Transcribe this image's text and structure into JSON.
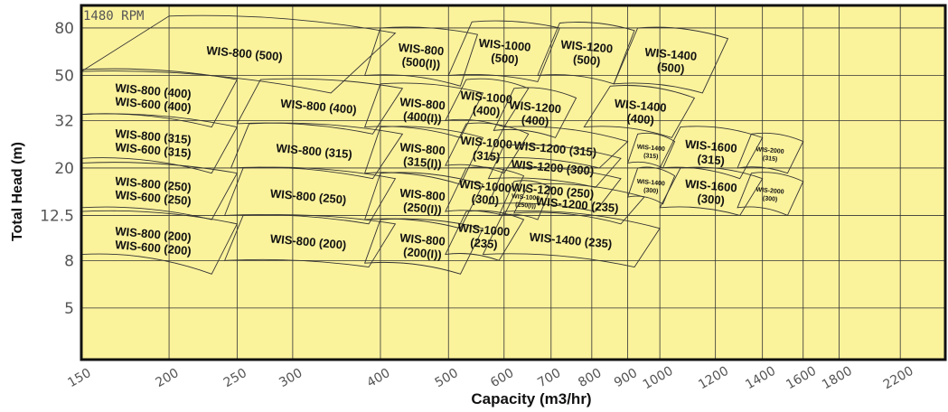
{
  "chart_data": {
    "type": "scatter",
    "title": "",
    "annotation": "1480 RPM",
    "xlabel": "Capacity (m3/hr)",
    "ylabel": "Total Head (m)",
    "x_scale": "log",
    "y_scale": "log",
    "x_ticks": [
      150,
      200,
      250,
      300,
      400,
      500,
      600,
      700,
      800,
      900,
      1000,
      1200,
      1400,
      1600,
      1800,
      2200
    ],
    "x_tick_labels": [
      "150",
      "200",
      "250",
      "300",
      "400",
      "500",
      "600",
      "700",
      "800",
      "900",
      "1000",
      "1200",
      "1400",
      "1600",
      "1800",
      "2200"
    ],
    "y_ticks": [
      5,
      8,
      12.5,
      20,
      32,
      50,
      80
    ],
    "y_tick_labels": [
      "5",
      "8",
      "12.5",
      "20",
      "32",
      "50",
      "80"
    ],
    "xlim": [
      150,
      2550
    ],
    "ylim": [
      3,
      100
    ],
    "grid": true,
    "colors": {
      "background": "#fbf29c",
      "border": "#111111",
      "grid": "#333333",
      "region_stroke": "#333333"
    },
    "regions": [
      {
        "lines": [
          "WIS-800 (500)"
        ],
        "corners": [
          [
            200,
            90
          ],
          [
            420,
            76
          ],
          [
            340,
            42
          ],
          [
            150,
            52
          ]
        ]
      },
      {
        "lines": [
          "WIS-800 (400)",
          "WIS-600 (400)"
        ],
        "corners": [
          [
            150,
            53
          ],
          [
            250,
            48
          ],
          [
            230,
            30
          ],
          [
            150,
            34
          ]
        ]
      },
      {
        "lines": [
          "WIS-800 (315)",
          "WIS-600 (315)"
        ],
        "corners": [
          [
            150,
            34
          ],
          [
            250,
            30
          ],
          [
            230,
            19
          ],
          [
            150,
            22
          ]
        ]
      },
      {
        "lines": [
          "WIS-800 (250)",
          "WIS-600 (250)"
        ],
        "corners": [
          [
            150,
            21
          ],
          [
            250,
            19
          ],
          [
            230,
            12
          ],
          [
            150,
            13.5
          ]
        ]
      },
      {
        "lines": [
          "WIS-800 (200)",
          "WIS-600 (200)"
        ],
        "corners": [
          [
            150,
            13
          ],
          [
            250,
            11.5
          ],
          [
            230,
            7
          ],
          [
            150,
            8.5
          ]
        ]
      },
      {
        "lines": [
          "WIS-800 (400)"
        ],
        "corners": [
          [
            270,
            48
          ],
          [
            430,
            44
          ],
          [
            390,
            28
          ],
          [
            250,
            31
          ]
        ]
      },
      {
        "lines": [
          "WIS-800 (315)"
        ],
        "corners": [
          [
            260,
            31
          ],
          [
            430,
            28
          ],
          [
            390,
            18
          ],
          [
            245,
            20
          ]
        ]
      },
      {
        "lines": [
          "WIS-800 (250)"
        ],
        "corners": [
          [
            255,
            20
          ],
          [
            420,
            18
          ],
          [
            385,
            11.5
          ],
          [
            240,
            12.5
          ]
        ]
      },
      {
        "lines": [
          "WIS-800 (200)"
        ],
        "corners": [
          [
            255,
            12.5
          ],
          [
            420,
            11.5
          ],
          [
            385,
            7.5
          ],
          [
            240,
            8
          ]
        ]
      },
      {
        "lines": [
          "WIS-800",
          "(500(I))"
        ],
        "corners": [
          [
            400,
            80
          ],
          [
            550,
            75
          ],
          [
            520,
            45
          ],
          [
            380,
            50
          ]
        ]
      },
      {
        "lines": [
          "WIS-800",
          "(400(I))"
        ],
        "corners": [
          [
            400,
            46
          ],
          [
            560,
            42
          ],
          [
            520,
            27
          ],
          [
            380,
            30
          ]
        ]
      },
      {
        "lines": [
          "WIS-800",
          "(315(I))"
        ],
        "corners": [
          [
            400,
            30
          ],
          [
            560,
            27
          ],
          [
            520,
            17
          ],
          [
            380,
            19
          ]
        ]
      },
      {
        "lines": [
          "WIS-800",
          "(250(I))"
        ],
        "corners": [
          [
            400,
            19
          ],
          [
            560,
            17
          ],
          [
            520,
            11
          ],
          [
            380,
            12
          ]
        ]
      },
      {
        "lines": [
          "WIS-800",
          "(200(I))"
        ],
        "corners": [
          [
            400,
            12
          ],
          [
            560,
            11
          ],
          [
            520,
            7
          ],
          [
            380,
            7.8
          ]
        ]
      },
      {
        "lines": [
          "WIS-1000",
          "(500)"
        ],
        "corners": [
          [
            540,
            85
          ],
          [
            720,
            80
          ],
          [
            670,
            47
          ],
          [
            500,
            50
          ]
        ]
      },
      {
        "lines": [
          "WIS-1000",
          "(400)"
        ],
        "corners": [
          [
            530,
            48
          ],
          [
            650,
            44
          ],
          [
            600,
            30
          ],
          [
            495,
            32
          ]
        ]
      },
      {
        "lines": [
          "WIS-1000",
          "(315)"
        ],
        "corners": [
          [
            530,
            31
          ],
          [
            650,
            28
          ],
          [
            600,
            19
          ],
          [
            495,
            20.5
          ]
        ]
      },
      {
        "lines": [
          "WIS-1000",
          "(300)"
        ],
        "corners": [
          [
            530,
            20
          ],
          [
            640,
            18.5
          ],
          [
            600,
            12.5
          ],
          [
            495,
            13
          ]
        ]
      },
      {
        "lines": [
          "WIS-1000",
          "(235)"
        ],
        "corners": [
          [
            530,
            13
          ],
          [
            640,
            12
          ],
          [
            590,
            8
          ],
          [
            495,
            8.5
          ]
        ]
      },
      {
        "lines": [
          "WIS-1200",
          "(500)"
        ],
        "corners": [
          [
            720,
            84
          ],
          [
            920,
            78
          ],
          [
            860,
            46
          ],
          [
            670,
            50
          ]
        ]
      },
      {
        "lines": [
          "WIS-1200",
          "(400)"
        ],
        "corners": [
          [
            620,
            44
          ],
          [
            760,
            40
          ],
          [
            710,
            27
          ],
          [
            580,
            29
          ]
        ]
      },
      {
        "lines": [
          "WIS-1200 (315)"
        ],
        "corners": [
          [
            600,
            30
          ],
          [
            900,
            26
          ],
          [
            820,
            20
          ],
          [
            570,
            22
          ]
        ]
      },
      {
        "lines": [
          "WIS-1200 (300)"
        ],
        "corners": [
          [
            600,
            25
          ],
          [
            880,
            22
          ],
          [
            810,
            16.5
          ],
          [
            570,
            18
          ]
        ]
      },
      {
        "lines": [
          "WIS-1200 (250)"
        ],
        "corners": [
          [
            600,
            20
          ],
          [
            880,
            18
          ],
          [
            810,
            13
          ],
          [
            570,
            14
          ]
        ]
      },
      {
        "lines": [
          "WIS-1000",
          "(250(I))"
        ],
        "corners": [
          [
            620,
            17.5
          ],
          [
            700,
            16.5
          ],
          [
            670,
            12
          ],
          [
            590,
            12.5
          ]
        ]
      },
      {
        "lines": [
          "WIS-1200 (235)"
        ],
        "corners": [
          [
            650,
            17
          ],
          [
            950,
            15
          ],
          [
            880,
            11.5
          ],
          [
            620,
            12.8
          ]
        ]
      },
      {
        "lines": [
          "WIS-1400 (235)"
        ],
        "corners": [
          [
            600,
            13
          ],
          [
            1000,
            11
          ],
          [
            920,
            7.5
          ],
          [
            560,
            8.5
          ]
        ]
      },
      {
        "lines": [
          "WIS-1400",
          "(500)"
        ],
        "corners": [
          [
            930,
            80
          ],
          [
            1250,
            72
          ],
          [
            1150,
            42
          ],
          [
            860,
            46
          ]
        ]
      },
      {
        "lines": [
          "WIS-1400",
          "(400)"
        ],
        "corners": [
          [
            850,
            45
          ],
          [
            1120,
            40
          ],
          [
            1040,
            27
          ],
          [
            780,
            30
          ]
        ]
      },
      {
        "lines": [
          "WIS-1400",
          "(315)"
        ],
        "corners": [
          [
            930,
            28
          ],
          [
            1050,
            26
          ],
          [
            1010,
            20
          ],
          [
            900,
            21
          ]
        ]
      },
      {
        "lines": [
          "WIS-1400",
          "(300)"
        ],
        "corners": [
          [
            930,
            20
          ],
          [
            1050,
            18.5
          ],
          [
            1010,
            14
          ],
          [
            900,
            15
          ]
        ]
      },
      {
        "lines": [
          "WIS-1600",
          "(315)"
        ],
        "corners": [
          [
            1070,
            30
          ],
          [
            1400,
            27
          ],
          [
            1300,
            18
          ],
          [
            1000,
            20
          ]
        ]
      },
      {
        "lines": [
          "WIS-1600",
          "(300)"
        ],
        "corners": [
          [
            1070,
            20
          ],
          [
            1400,
            18
          ],
          [
            1300,
            12.5
          ],
          [
            1000,
            13.5
          ]
        ]
      },
      {
        "lines": [
          "WIS-2000",
          "(315)"
        ],
        "corners": [
          [
            1350,
            28
          ],
          [
            1600,
            26
          ],
          [
            1520,
            19
          ],
          [
            1290,
            20
          ]
        ]
      },
      {
        "lines": [
          "WIS-2000",
          "(300)"
        ],
        "corners": [
          [
            1350,
            19
          ],
          [
            1600,
            17.5
          ],
          [
            1520,
            12.5
          ],
          [
            1290,
            13.5
          ]
        ]
      }
    ]
  }
}
